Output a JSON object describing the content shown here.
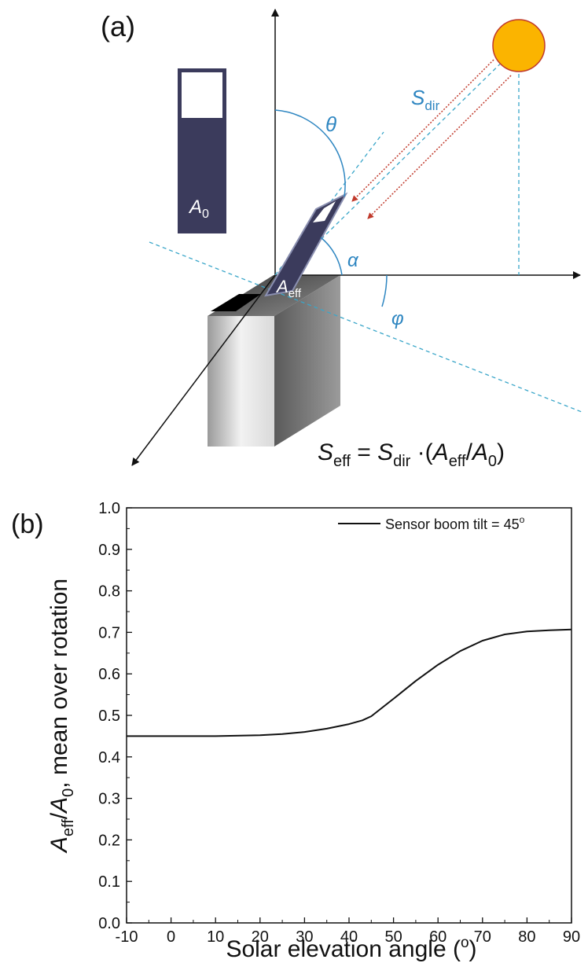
{
  "panel_a": {
    "label": "(a)",
    "sdir_main": "S",
    "sdir_sub": "dir",
    "theta": "θ",
    "alpha": "α",
    "phi": "φ",
    "a0_main": "A",
    "a0_sub": "0",
    "aeff_main": "A",
    "aeff_sub": "eff",
    "formula": {
      "s": "S",
      "eff": "eff",
      "eq": " = ",
      "dir": "dir",
      "dot_open": " ·(",
      "a": "A",
      "slash": "/",
      "zero": "0",
      "close": ")"
    },
    "colors": {
      "sun_fill": "#fbb400",
      "sun_stroke": "#c0392b",
      "angle": "#2e86c1",
      "dashed": "#3aa6c9",
      "ray": "#c0392b",
      "sensor": "#3b3b5c"
    }
  },
  "panel_b": {
    "label": "(b)",
    "chart_data": {
      "type": "line",
      "xlabel_text": "Solar elevation angle (",
      "xlabel_deg": "o",
      "xlabel_close": ")",
      "ylabel": {
        "a": "A",
        "eff": "eff",
        "slash": "/",
        "a2": "A",
        "zero": "0",
        "rest": ", mean over rotation"
      },
      "xlim": [
        -10,
        90
      ],
      "ylim": [
        0.0,
        1.0
      ],
      "xticks": [
        "-10",
        "0",
        "10",
        "20",
        "30",
        "40",
        "50",
        "60",
        "70",
        "80",
        "90"
      ],
      "yticks": [
        "0.0",
        "0.1",
        "0.2",
        "0.3",
        "0.4",
        "0.5",
        "0.6",
        "0.7",
        "0.8",
        "0.9",
        "1.0"
      ],
      "legend_position": "top-right",
      "series": [
        {
          "name": "Sensor boom tilt = 45",
          "name_deg": "o",
          "x": [
            -10,
            0,
            10,
            20,
            25,
            30,
            35,
            40,
            43,
            45,
            50,
            55,
            60,
            65,
            70,
            75,
            80,
            85,
            90
          ],
          "y": [
            0.45,
            0.45,
            0.45,
            0.452,
            0.455,
            0.46,
            0.468,
            0.479,
            0.488,
            0.498,
            0.54,
            0.583,
            0.622,
            0.655,
            0.68,
            0.695,
            0.702,
            0.705,
            0.707
          ]
        }
      ]
    }
  }
}
